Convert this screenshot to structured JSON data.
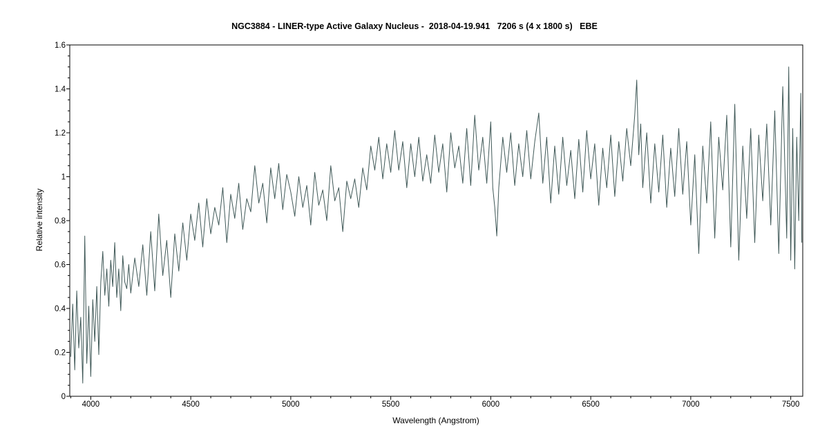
{
  "chart_data": {
    "type": "line",
    "title": "NGC3884 - LINER-type Active Galaxy Nucleus -  2018-04-19.941   7206 s (4 x 1800 s)   EBE",
    "xlabel": "Wavelength (Angstrom)",
    "ylabel": "Relative intensity",
    "xlim": [
      3895,
      7560
    ],
    "ylim": [
      0,
      1.6
    ],
    "x_ticks": [
      4000,
      4500,
      5000,
      5500,
      6000,
      6500,
      7000,
      7500
    ],
    "x_tick_labels": [
      "4000",
      "4500",
      "5000",
      "5500",
      "6000",
      "6500",
      "7000",
      "7500"
    ],
    "y_ticks": [
      0,
      0.2,
      0.4,
      0.6,
      0.8,
      1,
      1.2,
      1.4,
      1.6
    ],
    "y_tick_labels": [
      "0",
      "0.2",
      "0.4",
      "0.6",
      "0.8",
      "1",
      "1.2",
      "1.4",
      "1.6"
    ],
    "grid": false,
    "legend": "none",
    "line_color": "#3f5857",
    "series": [
      {
        "x": [
          3900,
          3910,
          3920,
          3930,
          3940,
          3950,
          3960,
          3970,
          3980,
          3990,
          4000,
          4010,
          4020,
          4030,
          4040,
          4050,
          4060,
          4070,
          4080,
          4090,
          4100,
          4110,
          4120,
          4130,
          4140,
          4150,
          4160,
          4170,
          4180,
          4190,
          4200,
          4220,
          4240,
          4260,
          4280,
          4300,
          4320,
          4340,
          4360,
          4380,
          4400,
          4420,
          4440,
          4460,
          4480,
          4500,
          4520,
          4540,
          4560,
          4580,
          4600,
          4620,
          4640,
          4660,
          4680,
          4700,
          4720,
          4740,
          4760,
          4780,
          4800,
          4820,
          4840,
          4860,
          4880,
          4900,
          4920,
          4940,
          4960,
          4980,
          5000,
          5020,
          5040,
          5060,
          5080,
          5100,
          5120,
          5140,
          5160,
          5180,
          5200,
          5220,
          5240,
          5260,
          5280,
          5300,
          5320,
          5340,
          5360,
          5380,
          5400,
          5420,
          5440,
          5460,
          5480,
          5500,
          5520,
          5540,
          5560,
          5580,
          5600,
          5620,
          5640,
          5660,
          5680,
          5700,
          5720,
          5740,
          5760,
          5780,
          5800,
          5820,
          5840,
          5860,
          5880,
          5900,
          5920,
          5940,
          5960,
          5980,
          6000,
          6010,
          6020,
          6030,
          6040,
          6060,
          6080,
          6100,
          6120,
          6140,
          6160,
          6180,
          6200,
          6220,
          6240,
          6260,
          6280,
          6300,
          6320,
          6340,
          6360,
          6380,
          6400,
          6420,
          6440,
          6460,
          6480,
          6500,
          6520,
          6540,
          6560,
          6580,
          6600,
          6620,
          6640,
          6660,
          6680,
          6700,
          6720,
          6730,
          6740,
          6750,
          6760,
          6780,
          6800,
          6820,
          6840,
          6860,
          6880,
          6900,
          6920,
          6940,
          6960,
          6980,
          7000,
          7020,
          7040,
          7060,
          7080,
          7100,
          7120,
          7140,
          7160,
          7180,
          7200,
          7220,
          7240,
          7260,
          7280,
          7300,
          7320,
          7340,
          7360,
          7380,
          7400,
          7420,
          7440,
          7460,
          7480,
          7490,
          7500,
          7510,
          7520,
          7530,
          7540,
          7550,
          7555
        ],
        "y": [
          0.18,
          0.42,
          0.12,
          0.48,
          0.22,
          0.36,
          0.06,
          0.73,
          0.15,
          0.41,
          0.09,
          0.44,
          0.25,
          0.5,
          0.19,
          0.52,
          0.66,
          0.46,
          0.58,
          0.41,
          0.62,
          0.5,
          0.7,
          0.45,
          0.58,
          0.39,
          0.64,
          0.52,
          0.49,
          0.6,
          0.47,
          0.63,
          0.5,
          0.69,
          0.46,
          0.75,
          0.48,
          0.83,
          0.55,
          0.71,
          0.45,
          0.74,
          0.57,
          0.79,
          0.62,
          0.83,
          0.71,
          0.88,
          0.68,
          0.9,
          0.74,
          0.86,
          0.78,
          0.95,
          0.7,
          0.92,
          0.81,
          0.97,
          0.76,
          0.9,
          0.84,
          1.05,
          0.88,
          0.97,
          0.79,
          1.04,
          0.9,
          1.06,
          0.85,
          1.01,
          0.93,
          0.82,
          1.0,
          0.86,
          0.96,
          0.78,
          1.02,
          0.87,
          0.94,
          0.8,
          1.05,
          0.89,
          0.95,
          0.75,
          0.98,
          0.9,
          0.99,
          0.86,
          1.04,
          0.94,
          1.14,
          1.03,
          1.18,
          0.99,
          1.15,
          1.02,
          1.21,
          1.03,
          1.16,
          0.95,
          1.15,
          1.0,
          1.18,
          0.98,
          1.1,
          0.97,
          1.19,
          1.02,
          1.15,
          0.93,
          1.2,
          1.04,
          1.14,
          0.97,
          1.22,
          0.96,
          1.28,
          1.03,
          1.18,
          0.97,
          1.25,
          0.95,
          0.86,
          0.73,
          0.95,
          1.18,
          1.02,
          1.2,
          0.96,
          1.15,
          1.0,
          1.21,
          0.99,
          1.16,
          1.29,
          0.97,
          1.18,
          0.88,
          1.14,
          0.92,
          1.18,
          0.96,
          1.12,
          0.9,
          1.17,
          0.93,
          1.21,
          0.99,
          1.15,
          0.87,
          1.13,
          0.95,
          1.19,
          0.91,
          1.16,
          0.98,
          1.22,
          1.05,
          1.28,
          1.44,
          1.1,
          1.24,
          0.95,
          1.2,
          0.88,
          1.15,
          0.93,
          1.19,
          0.86,
          1.13,
          0.91,
          1.22,
          0.92,
          1.16,
          0.78,
          1.1,
          0.65,
          1.14,
          0.88,
          1.25,
          0.72,
          1.18,
          0.94,
          1.28,
          0.68,
          1.33,
          0.62,
          1.14,
          0.81,
          1.22,
          0.7,
          1.19,
          0.89,
          1.24,
          0.78,
          1.3,
          0.65,
          1.41,
          0.72,
          1.5,
          0.62,
          1.22,
          0.58,
          1.18,
          0.8,
          1.38,
          0.7
        ]
      }
    ]
  }
}
